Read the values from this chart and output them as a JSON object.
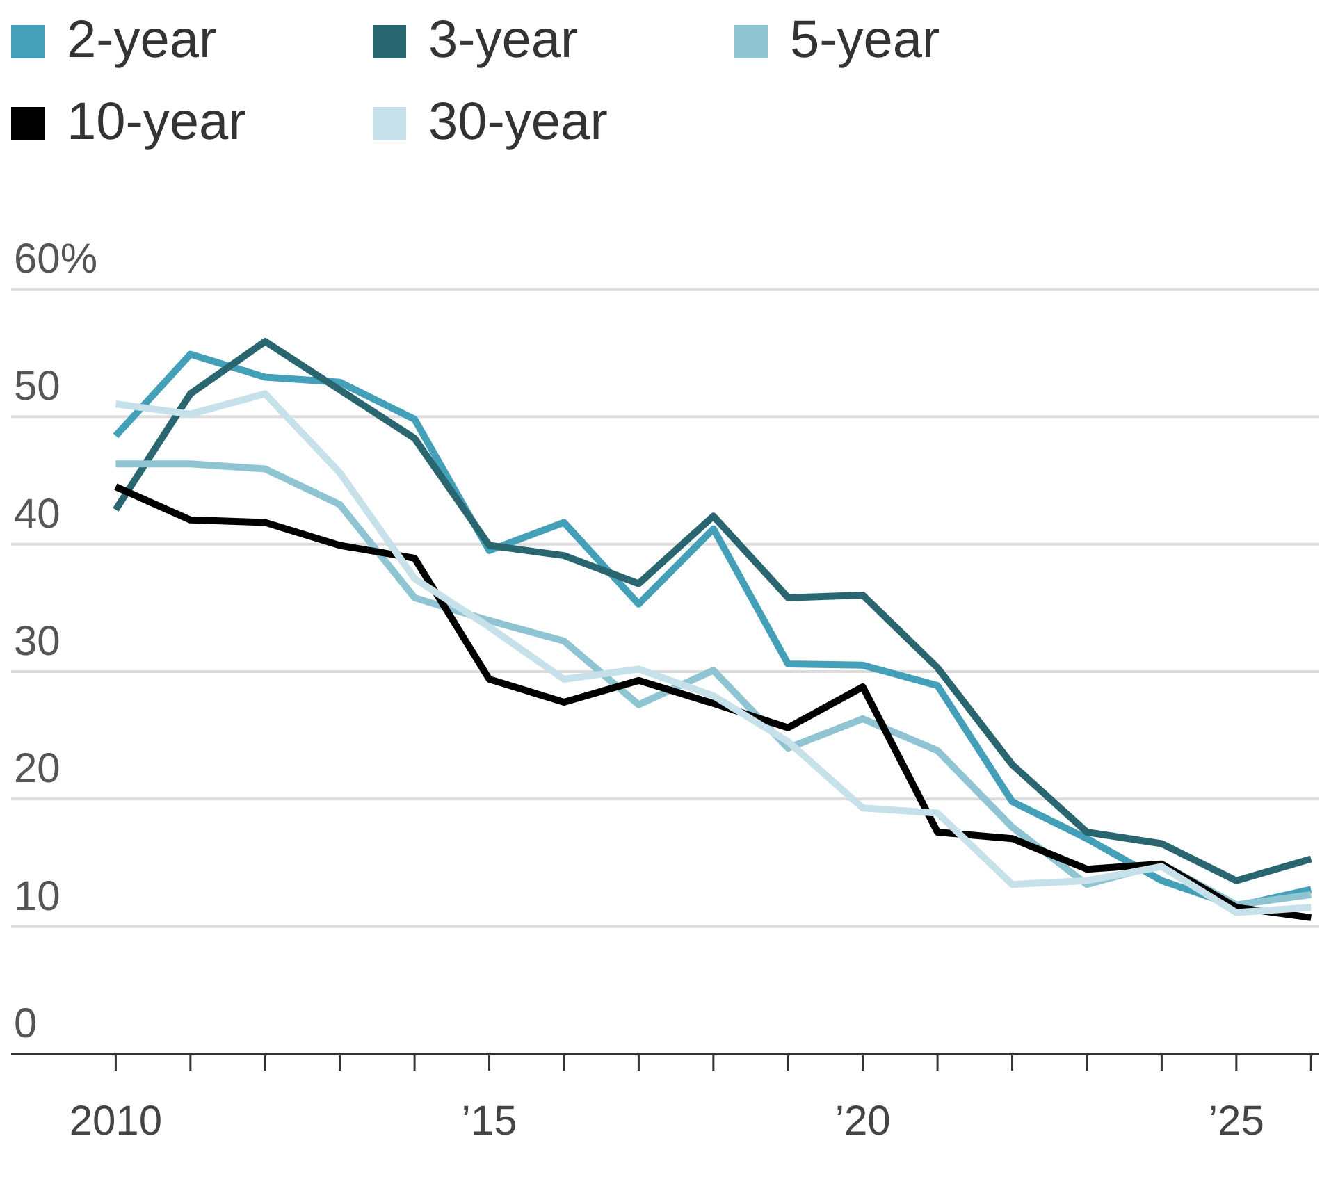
{
  "chart_data": {
    "type": "line",
    "x": [
      2010,
      2011,
      2012,
      2013,
      2014,
      2015,
      2016,
      2017,
      2018,
      2019,
      2020,
      2021,
      2022,
      2023,
      2024,
      2025,
      2026
    ],
    "series": [
      {
        "name": "2-year",
        "color": "#44a0b8",
        "values": [
          48.5,
          54.9,
          53.1,
          52.7,
          49.8,
          39.5,
          41.7,
          35.3,
          41.2,
          30.6,
          30.5,
          28.9,
          19.8,
          16.9,
          13.6,
          11.6,
          12.9
        ]
      },
      {
        "name": "3-year",
        "color": "#2a6670",
        "values": [
          42.7,
          51.8,
          55.9,
          52.1,
          48.3,
          39.9,
          39.1,
          36.9,
          42.2,
          35.8,
          36.0,
          30.3,
          22.7,
          17.4,
          16.5,
          13.6,
          15.3
        ]
      },
      {
        "name": "5-year",
        "color": "#8fc4d3",
        "values": [
          46.3,
          46.3,
          45.9,
          43.1,
          35.8,
          34.0,
          32.4,
          27.4,
          30.1,
          24.0,
          26.3,
          23.8,
          17.8,
          13.3,
          14.9,
          11.7,
          12.5
        ]
      },
      {
        "name": "10-year",
        "color": "#000000",
        "values": [
          44.5,
          41.9,
          41.7,
          39.9,
          38.9,
          29.4,
          27.6,
          29.3,
          27.5,
          25.6,
          28.8,
          17.4,
          16.9,
          14.5,
          14.9,
          11.5,
          10.7
        ]
      },
      {
        "name": "30-year",
        "color": "#c6e1ea",
        "values": [
          51.0,
          50.2,
          51.8,
          45.6,
          37.3,
          33.5,
          29.4,
          30.2,
          28.1,
          24.5,
          19.3,
          18.9,
          13.3,
          13.6,
          14.7,
          11.1,
          11.5
        ]
      }
    ],
    "xlim": [
      2008.6,
      2026.1
    ],
    "xticks": [
      2010,
      {
        "value": 2011,
        "label": null
      },
      {
        "value": 2012,
        "label": null
      },
      {
        "value": 2013,
        "label": null
      },
      {
        "value": 2014,
        "label": null
      },
      {
        "value": 2015,
        "label": "’15"
      },
      {
        "value": 2016,
        "label": null
      },
      {
        "value": 2017,
        "label": null
      },
      {
        "value": 2018,
        "label": null
      },
      {
        "value": 2019,
        "label": null
      },
      {
        "value": 2020,
        "label": "’20"
      },
      {
        "value": 2021,
        "label": null
      },
      {
        "value": 2022,
        "label": null
      },
      {
        "value": 2023,
        "label": null
      },
      {
        "value": 2024,
        "label": null
      },
      {
        "value": 2025,
        "label": "’25"
      },
      {
        "value": 2026,
        "label": null
      }
    ],
    "ylim": [
      0,
      60
    ],
    "yticks": [
      0,
      10,
      20,
      30,
      40,
      50,
      {
        "value": 60,
        "label": "60%"
      }
    ],
    "grid": "y",
    "legend": "top left",
    "marker": "none",
    "line_style": "solid"
  }
}
